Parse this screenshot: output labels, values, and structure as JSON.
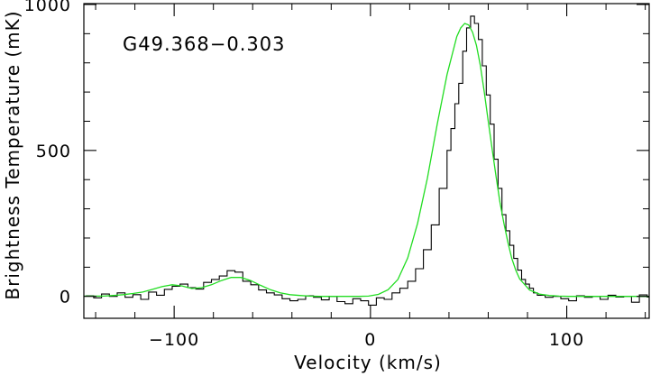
{
  "chart_data": {
    "type": "line",
    "title": "",
    "annotation": "G49.368−0.303",
    "xlabel": "Velocity (km/s)",
    "ylabel": "Brightness Temperature (mK)",
    "xlim": [
      -146,
      142
    ],
    "ylim": [
      -75,
      1003
    ],
    "xticks": [
      -100,
      0,
      100
    ],
    "xtick_labels": [
      "−100",
      "0",
      "100"
    ],
    "yticks": [
      0,
      500,
      1000
    ],
    "ytick_labels": [
      "0",
      "500",
      "1000"
    ],
    "x_minor_step": 20,
    "y_minor_step": 100,
    "grid": false,
    "series": [
      {
        "style": "histogram",
        "color": "#000000",
        "x": [
          -145,
          -141,
          -137,
          -133,
          -129,
          -125,
          -121,
          -117,
          -113,
          -109,
          -105,
          -101,
          -97,
          -93,
          -89,
          -85,
          -81,
          -77,
          -73,
          -69,
          -65,
          -61,
          -57,
          -53,
          -49,
          -45,
          -41,
          -37,
          -33,
          -29,
          -25,
          -21,
          -17,
          -13,
          -9,
          -5,
          -1,
          3,
          7,
          11,
          15,
          19,
          23,
          27,
          31,
          35,
          39,
          41,
          43,
          45,
          47,
          49,
          51,
          53,
          55,
          57,
          59,
          61,
          63,
          65,
          67,
          69,
          71,
          73,
          75,
          77,
          79,
          81,
          83,
          85,
          89,
          93,
          97,
          101,
          105,
          109,
          113,
          117,
          121,
          125,
          129,
          133,
          137,
          141
        ],
        "y": [
          2,
          -5,
          8,
          0,
          12,
          -3,
          6,
          -10,
          15,
          4,
          24,
          35,
          42,
          30,
          25,
          48,
          58,
          70,
          88,
          83,
          52,
          40,
          22,
          12,
          5,
          -8,
          -15,
          -10,
          2,
          -3,
          -12,
          0,
          -18,
          -25,
          -8,
          -15,
          -30,
          -5,
          -10,
          12,
          28,
          52,
          95,
          160,
          245,
          370,
          500,
          575,
          660,
          730,
          840,
          920,
          960,
          935,
          880,
          790,
          690,
          590,
          470,
          370,
          280,
          225,
          175,
          130,
          90,
          58,
          42,
          28,
          12,
          4,
          -3,
          0,
          -8,
          -15,
          2,
          -3,
          0,
          -10,
          4,
          -2,
          0,
          -20,
          5,
          -2
        ]
      },
      {
        "style": "smooth",
        "color": "#22dd22",
        "x": [
          -146,
          -141,
          -136,
          -131,
          -126,
          -121,
          -116,
          -111,
          -106,
          -101,
          -96,
          -91,
          -86,
          -81,
          -76,
          -71,
          -66,
          -61,
          -56,
          -51,
          -46,
          -41,
          -36,
          -31,
          -26,
          -21,
          -16,
          -11,
          -6,
          -1,
          4,
          9,
          14,
          19,
          24,
          29,
          34,
          39,
          44,
          46,
          48,
          50,
          52,
          54,
          56,
          58,
          60,
          62,
          64,
          66,
          68,
          70,
          72,
          74,
          76,
          81,
          86,
          91,
          96,
          101,
          106,
          111,
          116,
          121,
          126,
          131,
          136,
          142
        ],
        "y": [
          1,
          1,
          1,
          3,
          6,
          10,
          15,
          24,
          34,
          40,
          36,
          27,
          30,
          40,
          54,
          65,
          65,
          54,
          38,
          23,
          12,
          6,
          3,
          1,
          0,
          0,
          0,
          0,
          0,
          1,
          7,
          23,
          58,
          132,
          250,
          405,
          590,
          760,
          890,
          920,
          935,
          930,
          905,
          860,
          790,
          700,
          600,
          505,
          410,
          322,
          250,
          185,
          130,
          90,
          60,
          22,
          8,
          3,
          1,
          0,
          0,
          0,
          0,
          0,
          0,
          0,
          0,
          0
        ]
      }
    ]
  }
}
